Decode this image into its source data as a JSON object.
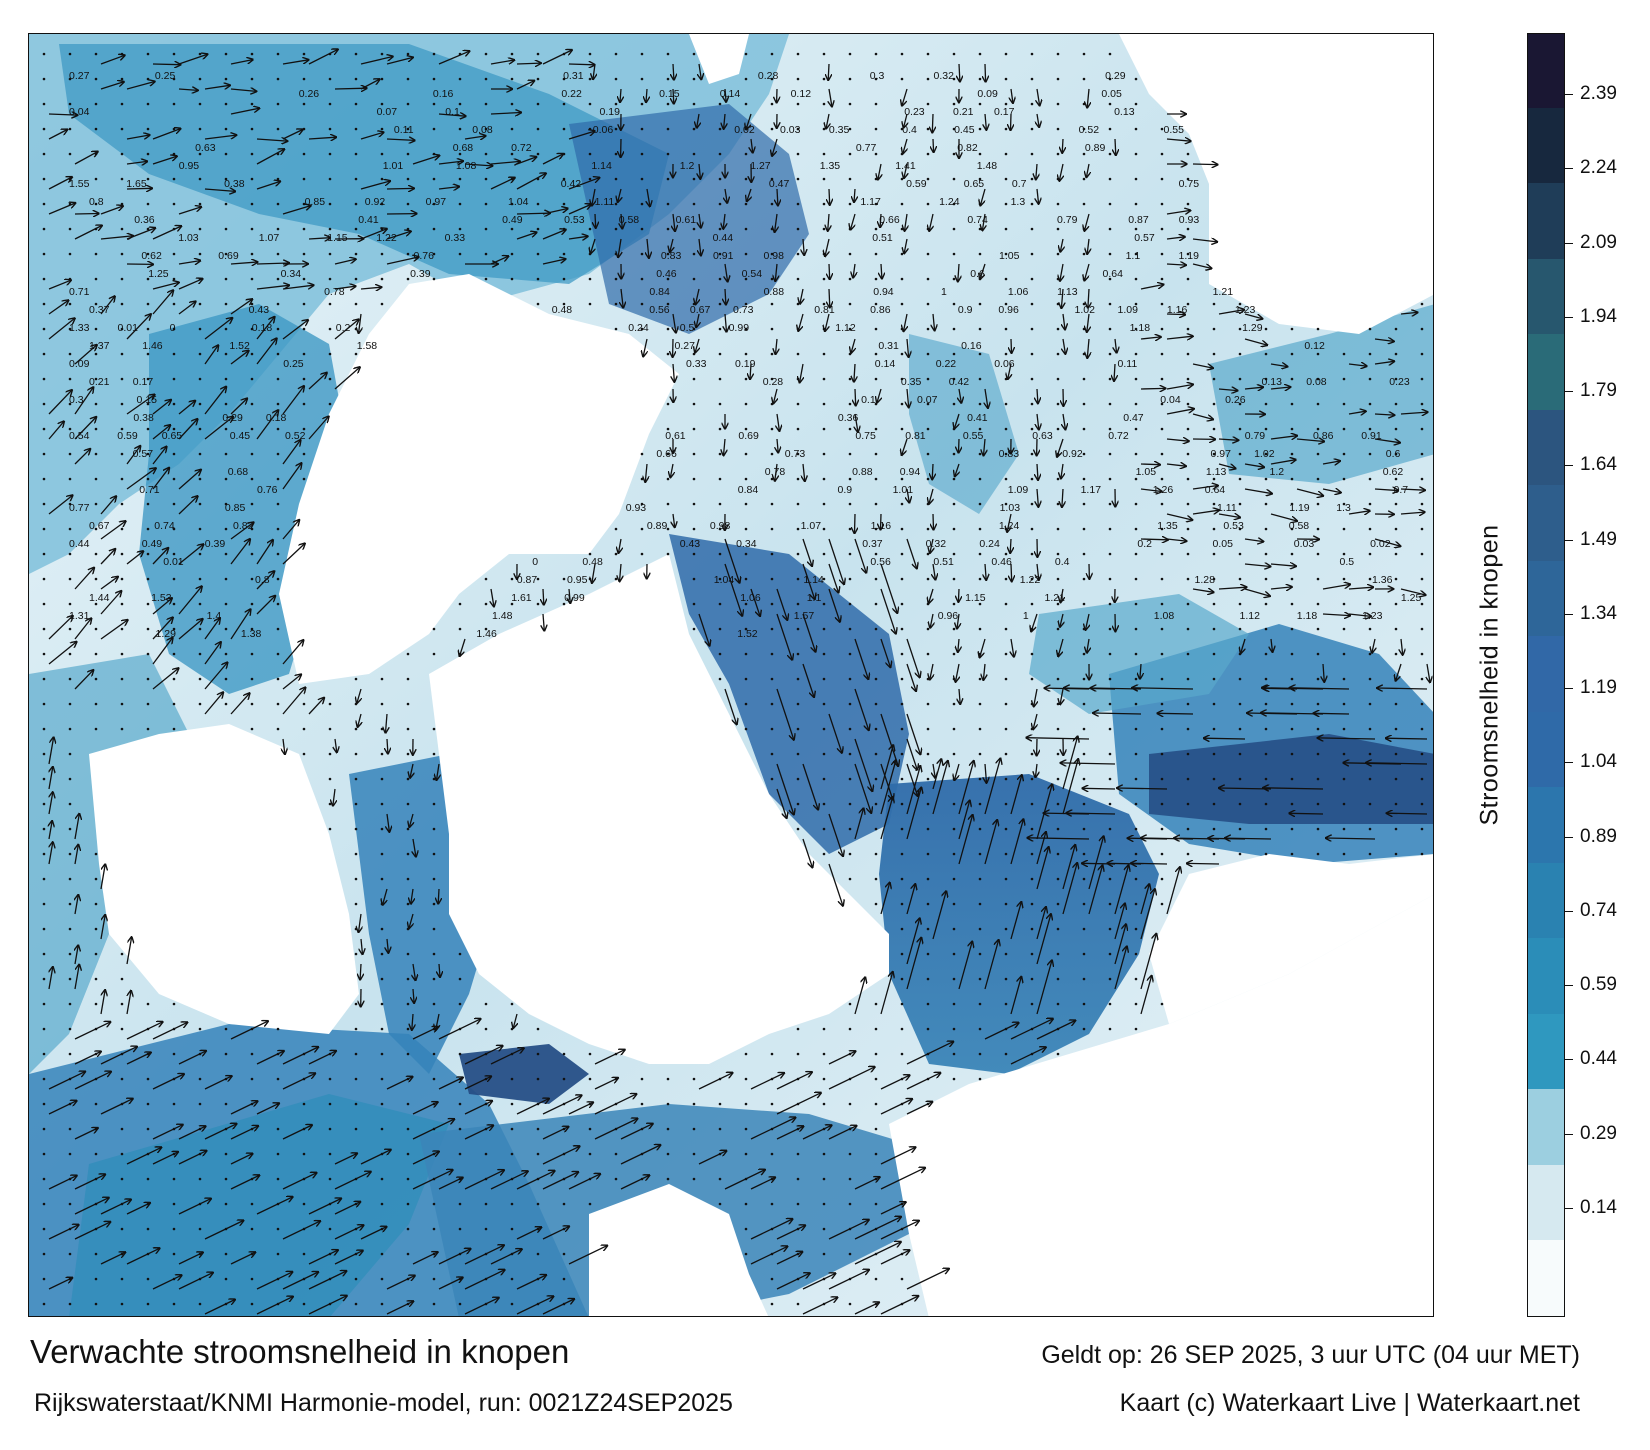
{
  "title": "Verwachte stroomsnelheid in knopen",
  "subtitle": "Rijkswaterstaat/KNMI Harmonie-model, run: 0021Z24SEP2025",
  "valid_time": "Geldt op: 26 SEP 2025, 3 uur UTC (04 uur MET)",
  "credits": "Kaart (c) Waterkaart Live | Waterkaart.net",
  "colorbar": {
    "title": "Stroomsnelheid in knopen",
    "ticks": [
      "0.14",
      "0.29",
      "0.44",
      "0.59",
      "0.74",
      "0.89",
      "1.04",
      "1.19",
      "1.34",
      "1.49",
      "1.64",
      "1.79",
      "1.94",
      "2.09",
      "2.24",
      "2.39"
    ],
    "colors": [
      "#f7fbfc",
      "#d6e9f0",
      "#9ccfe0",
      "#2f98bf",
      "#2b8db8",
      "#2a82b1",
      "#2c76ad",
      "#2f6aa8",
      "#3168a7",
      "#2e6699",
      "#2e5e8c",
      "#2c557f",
      "#2a6b78",
      "#27576e",
      "#1f3d58",
      "#17283e",
      "#1a1733"
    ]
  },
  "map": {
    "layer": "current-speed",
    "colors": {
      "land": "#ffffff",
      "shallow": "#e8f3f8",
      "low": "#9fd0e2",
      "mid": "#3b9bc6",
      "high": "#2f6ba9",
      "very_high": "#264f86"
    },
    "value_labels": [
      "0.27",
      "0.25",
      "0.31",
      "0.28",
      "0.3",
      "0.32",
      "0.29",
      "0.26",
      "0.16",
      "0.22",
      "0.15",
      "0.14",
      "0.12",
      "0.09",
      "0.05",
      "0.04",
      "0.07",
      "0.1",
      "0.19",
      "0.23",
      "0.21",
      "0.17",
      "0.13",
      "0.11",
      "0.08",
      "0.06",
      "0.02",
      "0.03",
      "0.35",
      "0.4",
      "0.45",
      "0.52",
      "0.55",
      "0.63",
      "0.68",
      "0.72",
      "0.77",
      "0.82",
      "0.89",
      "0.95",
      "1.01",
      "1.08",
      "1.14",
      "1.2",
      "1.27",
      "1.35",
      "1.41",
      "1.48",
      "1.55",
      "1.65",
      "0.38",
      "0.42",
      "0.47",
      "0.59",
      "0.65",
      "0.7",
      "0.75",
      "0.8",
      "0.85",
      "0.92",
      "0.97",
      "1.04",
      "1.11",
      "1.17",
      "1.24",
      "1.3",
      "0.36",
      "0.41",
      "0.49",
      "0.53",
      "0.58",
      "0.61",
      "0.66",
      "0.74",
      "0.79",
      "0.87",
      "0.93",
      "1.03",
      "1.07",
      "1.15",
      "1.22",
      "0.33",
      "0.44",
      "0.51",
      "0.57",
      "0.62",
      "0.69",
      "0.76",
      "0.83",
      "0.91",
      "0.98",
      "1.05",
      "1.1",
      "1.19",
      "1.25",
      "0.34",
      "0.39",
      "0.46",
      "0.54",
      "0.6",
      "0.64",
      "0.71",
      "0.78",
      "0.84",
      "0.88",
      "0.94",
      "1",
      "1.06",
      "1.13",
      "1.21",
      "0.37",
      "0.43",
      "0.48",
      "0.56",
      "0.67",
      "0.73",
      "0.81",
      "0.86",
      "0.9",
      "0.96",
      "1.02",
      "1.09",
      "1.16",
      "1.23",
      "1.33",
      "0.01",
      "0",
      "0.18",
      "0.2",
      "0.24",
      "0.5",
      "0.99",
      "1.12",
      "1.18",
      "1.29",
      "1.37",
      "1.46",
      "1.52",
      "1.58",
      "0.27",
      "0.31",
      "0.16",
      "0.12",
      "0.09",
      "0.25",
      "0.33",
      "0.19",
      "0.14",
      "0.22",
      "0.06",
      "0.11",
      "0.21",
      "0.17",
      "0.28",
      "0.35",
      "0.42",
      "0.13",
      "0.08",
      "0.23",
      "0.3",
      "0.15",
      "0.1",
      "0.07",
      "0.04",
      "0.26",
      "0.38",
      "0.29",
      "0.18",
      "0.36",
      "0.41",
      "0.47",
      "0.54",
      "0.59",
      "0.65",
      "0.45",
      "0.52",
      "0.61",
      "0.69",
      "0.75",
      "0.81",
      "0.55",
      "0.63",
      "0.72",
      "0.79",
      "0.86",
      "0.91",
      "0.57",
      "0.66",
      "0.73",
      "0.83",
      "0.92",
      "0.97",
      "1.02",
      "0.6",
      "0.68",
      "0.78",
      "0.88",
      "0.94",
      "1.05",
      "1.13",
      "1.2",
      "0.62",
      "0.71",
      "0.76",
      "0.84",
      "0.9",
      "1.01",
      "1.09",
      "1.17",
      "1.26",
      "0.64",
      "0.7",
      "0.77",
      "0.85",
      "0.93",
      "1.03",
      "1.11",
      "1.19",
      "1.3",
      "0.67",
      "0.74",
      "0.82",
      "0.89",
      "0.98",
      "1.07",
      "1.16",
      "1.24",
      "1.35",
      "0.53",
      "0.58",
      "0.44",
      "0.49",
      "0.39",
      "0.43",
      "0.34",
      "0.37",
      "0.32",
      "0.24",
      "0.2",
      "0.05",
      "0.03",
      "0.02",
      "0.01",
      "0",
      "0.48",
      "0.56",
      "0.51",
      "0.46",
      "0.4",
      "0.5",
      "0.8",
      "0.87",
      "0.95",
      "1.04",
      "1.14",
      "1.22",
      "1.28",
      "1.36",
      "1.44",
      "1.53",
      "1.61",
      "0.99",
      "1.06",
      "1.1",
      "1.15",
      "1.21",
      "1.25",
      "1.31",
      "1.4",
      "1.48",
      "1.57",
      "0.96",
      "1",
      "1.08",
      "1.12",
      "1.18",
      "1.23",
      "1.29",
      "1.38",
      "1.46",
      "1.52"
    ]
  }
}
